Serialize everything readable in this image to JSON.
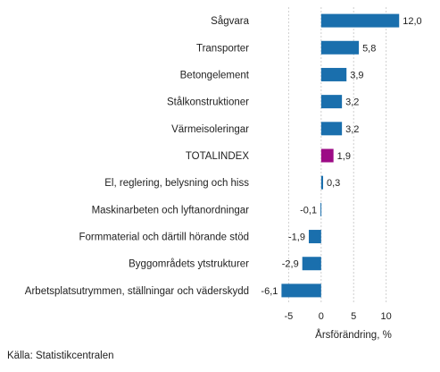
{
  "chart_data": {
    "type": "bar",
    "orientation": "horizontal",
    "categories": [
      "Sågvara",
      "Transporter",
      "Betongelement",
      "Stålkonstruktioner",
      "Värmeisoleringar",
      "TOTALINDEX",
      "El, reglering, belysning och hiss",
      "Maskinarbeten och lyftanordningar",
      "Formmaterial och därtill hörande stöd",
      "Byggområdets ytstrukturer",
      "Arbetsplatsutrymmen, ställningar och väderskydd"
    ],
    "values": [
      12.0,
      5.8,
      3.9,
      3.2,
      3.2,
      1.9,
      0.3,
      -0.1,
      -1.9,
      -2.9,
      -6.1
    ],
    "value_labels": [
      "12,0",
      "5,8",
      "3,9",
      "3,2",
      "3,2",
      "1,9",
      "0,3",
      "-0,1",
      "-1,9",
      "-2,9",
      "-6,1"
    ],
    "highlight_index": 5,
    "bar_color": "#1a6fad",
    "highlight_color": "#9c0b85",
    "xlabel": "Årsförändring, %",
    "xlim": [
      -10,
      16.5
    ],
    "xticks": [
      -5,
      0,
      5,
      10
    ],
    "xtick_labels": [
      "-5",
      "0",
      "5",
      "10"
    ],
    "grid": true
  },
  "source": "Källa: Statistikcentralen"
}
